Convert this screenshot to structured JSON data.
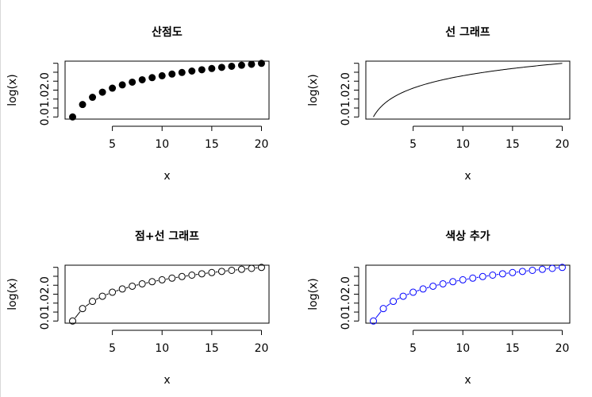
{
  "chart_data": [
    {
      "id": "scatter",
      "type": "scatter",
      "title": "산점도",
      "xlabel": "x",
      "ylabel": "log(x)",
      "x": [
        1,
        2,
        3,
        4,
        5,
        6,
        7,
        8,
        9,
        10,
        11,
        12,
        13,
        14,
        15,
        16,
        17,
        18,
        19,
        20
      ],
      "y": [
        0.0,
        0.693,
        1.099,
        1.386,
        1.609,
        1.792,
        1.946,
        2.079,
        2.197,
        2.303,
        2.398,
        2.485,
        2.565,
        2.639,
        2.708,
        2.773,
        2.833,
        2.89,
        2.944,
        2.996
      ],
      "xticks": [
        "5",
        "10",
        "15",
        "20"
      ],
      "yticks": [
        "0.0",
        "1.0",
        "2.0"
      ],
      "xlim": [
        0.24,
        20.76
      ],
      "ylim": [
        -0.12,
        3.12
      ],
      "style": "points-filled",
      "color": "#000000"
    },
    {
      "id": "line",
      "type": "line",
      "title": "선 그래프",
      "xlabel": "x",
      "ylabel": "log(x)",
      "x": [
        1,
        2,
        3,
        4,
        5,
        6,
        7,
        8,
        9,
        10,
        11,
        12,
        13,
        14,
        15,
        16,
        17,
        18,
        19,
        20
      ],
      "y": [
        0.0,
        0.693,
        1.099,
        1.386,
        1.609,
        1.792,
        1.946,
        2.079,
        2.197,
        2.303,
        2.398,
        2.485,
        2.565,
        2.639,
        2.708,
        2.773,
        2.833,
        2.89,
        2.944,
        2.996
      ],
      "xticks": [
        "5",
        "10",
        "15",
        "20"
      ],
      "yticks": [
        "0.0",
        "1.0",
        "2.0"
      ],
      "xlim": [
        0.24,
        20.76
      ],
      "ylim": [
        -0.12,
        3.12
      ],
      "style": "line",
      "color": "#000000"
    },
    {
      "id": "points-line",
      "type": "line",
      "title": "점+선 그래프",
      "xlabel": "x",
      "ylabel": "log(x)",
      "x": [
        1,
        2,
        3,
        4,
        5,
        6,
        7,
        8,
        9,
        10,
        11,
        12,
        13,
        14,
        15,
        16,
        17,
        18,
        19,
        20
      ],
      "y": [
        0.0,
        0.693,
        1.099,
        1.386,
        1.609,
        1.792,
        1.946,
        2.079,
        2.197,
        2.303,
        2.398,
        2.485,
        2.565,
        2.639,
        2.708,
        2.773,
        2.833,
        2.89,
        2.944,
        2.996
      ],
      "xticks": [
        "5",
        "10",
        "15",
        "20"
      ],
      "yticks": [
        "0.0",
        "1.0",
        "2.0"
      ],
      "xlim": [
        0.24,
        20.76
      ],
      "ylim": [
        -0.12,
        3.12
      ],
      "style": "line-open-points",
      "color": "#000000"
    },
    {
      "id": "colored",
      "type": "line",
      "title": "색상 추가",
      "xlabel": "x",
      "ylabel": "log(x)",
      "x": [
        1,
        2,
        3,
        4,
        5,
        6,
        7,
        8,
        9,
        10,
        11,
        12,
        13,
        14,
        15,
        16,
        17,
        18,
        19,
        20
      ],
      "y": [
        0.0,
        0.693,
        1.099,
        1.386,
        1.609,
        1.792,
        1.946,
        2.079,
        2.197,
        2.303,
        2.398,
        2.485,
        2.565,
        2.639,
        2.708,
        2.773,
        2.833,
        2.89,
        2.944,
        2.996
      ],
      "xticks": [
        "5",
        "10",
        "15",
        "20"
      ],
      "yticks": [
        "0.0",
        "1.0",
        "2.0"
      ],
      "xlim": [
        0.24,
        20.76
      ],
      "ylim": [
        -0.12,
        3.12
      ],
      "style": "line-open-points",
      "color": "#0000ff"
    }
  ]
}
